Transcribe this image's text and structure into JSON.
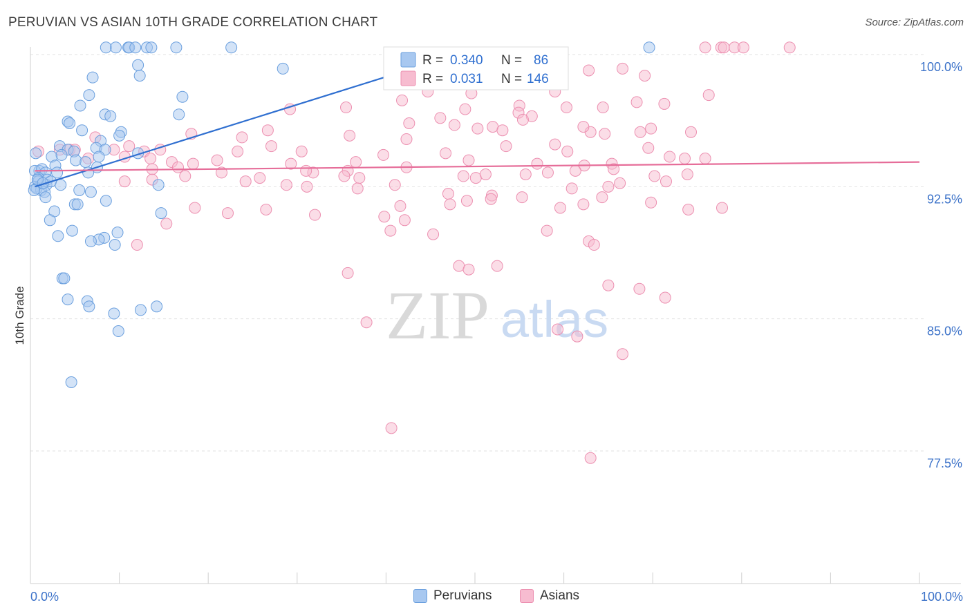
{
  "title": "PERUVIAN VS ASIAN 10TH GRADE CORRELATION CHART",
  "source": "Source: ZipAtlas.com",
  "watermark": {
    "zip": "ZIP",
    "atlas": "atlas"
  },
  "colors": {
    "blue_fill": "#a8c8f0",
    "blue_stroke": "#6a9fde",
    "blue_line": "#2f6fd0",
    "pink_fill": "#f7bcd0",
    "pink_stroke": "#ec8fb0",
    "pink_line": "#e66d99",
    "axis_text": "#3d73c9",
    "grid": "#e2e2e2"
  },
  "chart_data": {
    "type": "scatter",
    "xlabel": "",
    "ylabel": "10th Grade",
    "xlim": [
      0,
      100
    ],
    "ylim": [
      72.0,
      101.0
    ],
    "x_tick_labels": [
      "0.0%",
      "100.0%"
    ],
    "y_ticks": [
      100.0,
      92.5,
      85.0,
      77.5
    ],
    "y_tick_labels": [
      "100.0%",
      "92.5%",
      "85.0%",
      "77.5%"
    ],
    "grid": true,
    "legend_position": "top-center",
    "legend": [
      {
        "name": "Peruvians",
        "r_label": "R =",
        "r_value": "0.340",
        "n_label": "N =",
        "n_value": "86"
      },
      {
        "name": "Asians",
        "r_label": "R =",
        "r_value": "0.031",
        "n_label": "N =",
        "n_value": "146"
      }
    ],
    "series": [
      {
        "name": "Peruvians",
        "color": "#a8c8f0",
        "trend": {
          "x": [
            0.5,
            48
          ],
          "y": [
            92.5,
            100.0
          ]
        },
        "points": [
          [
            8.5,
            100.4
          ],
          [
            9.6,
            100.4
          ],
          [
            11.0,
            100.4
          ],
          [
            11.1,
            100.4
          ],
          [
            11.8,
            100.4
          ],
          [
            13.1,
            100.4
          ],
          [
            13.6,
            100.4
          ],
          [
            16.4,
            100.4
          ],
          [
            22.6,
            100.4
          ],
          [
            69.6,
            100.4
          ],
          [
            12.1,
            99.4
          ],
          [
            28.4,
            99.2
          ],
          [
            12.3,
            98.8
          ],
          [
            7.0,
            98.7
          ],
          [
            6.6,
            97.7
          ],
          [
            17.1,
            97.6
          ],
          [
            5.6,
            97.1
          ],
          [
            8.4,
            96.6
          ],
          [
            16.7,
            96.6
          ],
          [
            9.0,
            96.5
          ],
          [
            4.2,
            96.2
          ],
          [
            4.4,
            96.1
          ],
          [
            5.8,
            95.7
          ],
          [
            10.2,
            95.6
          ],
          [
            10.0,
            95.4
          ],
          [
            7.9,
            95.1
          ],
          [
            3.3,
            94.8
          ],
          [
            4.2,
            94.6
          ],
          [
            4.9,
            94.5
          ],
          [
            7.4,
            94.7
          ],
          [
            8.4,
            94.6
          ],
          [
            0.6,
            94.4
          ],
          [
            2.4,
            94.2
          ],
          [
            3.5,
            94.3
          ],
          [
            5.1,
            94.0
          ],
          [
            7.7,
            94.2
          ],
          [
            12.1,
            94.4
          ],
          [
            2.8,
            93.7
          ],
          [
            6.2,
            93.9
          ],
          [
            7.5,
            93.6
          ],
          [
            1.0,
            93.4
          ],
          [
            0.5,
            93.4
          ],
          [
            1.3,
            93.5
          ],
          [
            1.7,
            93.3
          ],
          [
            3.0,
            93.3
          ],
          [
            0.9,
            93.0
          ],
          [
            1.9,
            92.9
          ],
          [
            6.5,
            93.3
          ],
          [
            0.9,
            92.8
          ],
          [
            3.4,
            92.6
          ],
          [
            14.4,
            92.6
          ],
          [
            0.5,
            92.5
          ],
          [
            1.2,
            92.3
          ],
          [
            1.8,
            92.6
          ],
          [
            0.7,
            92.4
          ],
          [
            1.6,
            92.2
          ],
          [
            5.5,
            92.3
          ],
          [
            6.8,
            92.2
          ],
          [
            1.7,
            91.9
          ],
          [
            8.5,
            91.7
          ],
          [
            5.0,
            91.5
          ],
          [
            5.3,
            91.5
          ],
          [
            2.7,
            91.1
          ],
          [
            14.7,
            91.0
          ],
          [
            2.2,
            90.6
          ],
          [
            4.7,
            90.0
          ],
          [
            9.8,
            89.9
          ],
          [
            3.1,
            89.7
          ],
          [
            8.3,
            89.6
          ],
          [
            7.7,
            89.5
          ],
          [
            6.8,
            89.4
          ],
          [
            9.5,
            89.2
          ],
          [
            3.6,
            87.3
          ],
          [
            3.8,
            87.3
          ],
          [
            4.2,
            86.1
          ],
          [
            6.4,
            86.0
          ],
          [
            6.6,
            85.7
          ],
          [
            14.2,
            85.7
          ],
          [
            12.4,
            85.5
          ],
          [
            9.4,
            85.3
          ],
          [
            9.9,
            84.3
          ],
          [
            4.6,
            81.4
          ],
          [
            0.8,
            92.9
          ],
          [
            2.3,
            92.8
          ],
          [
            1.4,
            92.7
          ],
          [
            0.4,
            92.3
          ]
        ]
      },
      {
        "name": "Asians",
        "color": "#f7bcd0",
        "trend": {
          "x": [
            0.5,
            100
          ],
          "y": [
            93.4,
            93.9
          ]
        },
        "points": [
          [
            75.9,
            100.4
          ],
          [
            77.7,
            100.4
          ],
          [
            78.0,
            100.4
          ],
          [
            79.2,
            100.4
          ],
          [
            80.2,
            100.4
          ],
          [
            85.4,
            100.4
          ],
          [
            55.9,
            99.6
          ],
          [
            62.8,
            99.1
          ],
          [
            66.6,
            99.2
          ],
          [
            69.1,
            98.8
          ],
          [
            59.0,
            97.9
          ],
          [
            44.7,
            97.9
          ],
          [
            49.6,
            97.8
          ],
          [
            76.3,
            97.7
          ],
          [
            41.8,
            97.4
          ],
          [
            55.0,
            97.1
          ],
          [
            68.2,
            97.3
          ],
          [
            71.3,
            97.2
          ],
          [
            35.5,
            97.0
          ],
          [
            60.3,
            97.0
          ],
          [
            64.4,
            97.0
          ],
          [
            54.9,
            96.7
          ],
          [
            56.4,
            96.5
          ],
          [
            46.1,
            96.4
          ],
          [
            47.7,
            96.0
          ],
          [
            48.9,
            96.9
          ],
          [
            52.0,
            95.9
          ],
          [
            42.6,
            96.1
          ],
          [
            29.2,
            96.9
          ],
          [
            55.4,
            96.3
          ],
          [
            50.3,
            95.8
          ],
          [
            64.6,
            95.5
          ],
          [
            63.0,
            95.6
          ],
          [
            53.1,
            95.7
          ],
          [
            42.3,
            95.2
          ],
          [
            35.9,
            95.4
          ],
          [
            68.6,
            95.6
          ],
          [
            62.2,
            95.9
          ],
          [
            69.8,
            95.8
          ],
          [
            74.3,
            95.6
          ],
          [
            53.5,
            94.8
          ],
          [
            59.0,
            94.9
          ],
          [
            69.5,
            94.7
          ],
          [
            23.8,
            95.3
          ],
          [
            26.7,
            95.7
          ],
          [
            18.1,
            95.5
          ],
          [
            7.3,
            95.3
          ],
          [
            11.1,
            94.8
          ],
          [
            14.6,
            94.6
          ],
          [
            12.8,
            94.5
          ],
          [
            9.4,
            94.6
          ],
          [
            4.4,
            94.6
          ],
          [
            5.0,
            94.6
          ],
          [
            3.3,
            94.6
          ],
          [
            0.9,
            94.5
          ],
          [
            6.5,
            94.1
          ],
          [
            10.6,
            94.2
          ],
          [
            13.5,
            94.1
          ],
          [
            23.3,
            94.5
          ],
          [
            27.1,
            94.8
          ],
          [
            30.5,
            94.5
          ],
          [
            39.7,
            94.3
          ],
          [
            46.7,
            94.4
          ],
          [
            60.4,
            94.5
          ],
          [
            71.9,
            94.2
          ],
          [
            75.9,
            94.1
          ],
          [
            62.3,
            93.7
          ],
          [
            65.4,
            93.8
          ],
          [
            73.6,
            94.1
          ],
          [
            57.0,
            93.8
          ],
          [
            65.6,
            93.5
          ],
          [
            21.0,
            94.0
          ],
          [
            29.3,
            93.8
          ],
          [
            36.6,
            93.9
          ],
          [
            49.3,
            94.0
          ],
          [
            42.3,
            93.6
          ],
          [
            35.7,
            93.4
          ],
          [
            31.8,
            93.3
          ],
          [
            31.0,
            93.4
          ],
          [
            21.5,
            93.3
          ],
          [
            15.9,
            93.9
          ],
          [
            18.3,
            93.8
          ],
          [
            16.6,
            93.6
          ],
          [
            13.7,
            93.5
          ],
          [
            25.8,
            93.0
          ],
          [
            35.3,
            93.1
          ],
          [
            37.0,
            93.0
          ],
          [
            50.1,
            93.0
          ],
          [
            51.2,
            93.2
          ],
          [
            48.7,
            93.1
          ],
          [
            55.7,
            93.2
          ],
          [
            58.2,
            93.3
          ],
          [
            61.3,
            93.4
          ],
          [
            70.2,
            93.1
          ],
          [
            73.9,
            93.2
          ],
          [
            66.3,
            92.7
          ],
          [
            71.5,
            92.8
          ],
          [
            65.0,
            92.5
          ],
          [
            60.9,
            92.4
          ],
          [
            51.9,
            92.0
          ],
          [
            36.8,
            92.4
          ],
          [
            41.0,
            92.6
          ],
          [
            31.1,
            92.5
          ],
          [
            28.8,
            92.6
          ],
          [
            17.4,
            93.1
          ],
          [
            24.2,
            92.8
          ],
          [
            13.7,
            92.9
          ],
          [
            10.6,
            92.8
          ],
          [
            47.0,
            92.1
          ],
          [
            49.1,
            91.7
          ],
          [
            51.8,
            91.8
          ],
          [
            55.3,
            91.9
          ],
          [
            59.6,
            91.3
          ],
          [
            62.2,
            91.5
          ],
          [
            64.3,
            91.9
          ],
          [
            69.8,
            91.6
          ],
          [
            74.0,
            91.2
          ],
          [
            77.8,
            91.3
          ],
          [
            41.6,
            91.4
          ],
          [
            47.2,
            91.5
          ],
          [
            26.5,
            91.2
          ],
          [
            32.0,
            90.9
          ],
          [
            22.2,
            91.0
          ],
          [
            18.5,
            91.3
          ],
          [
            15.3,
            90.4
          ],
          [
            39.8,
            90.8
          ],
          [
            42.1,
            90.6
          ],
          [
            40.5,
            90.0
          ],
          [
            58.1,
            90.0
          ],
          [
            62.8,
            89.4
          ],
          [
            63.4,
            89.2
          ],
          [
            48.2,
            88.0
          ],
          [
            52.5,
            88.0
          ],
          [
            12.0,
            89.2
          ],
          [
            45.3,
            89.8
          ],
          [
            35.7,
            87.6
          ],
          [
            49.3,
            87.8
          ],
          [
            68.5,
            86.7
          ],
          [
            65.0,
            86.9
          ],
          [
            37.8,
            84.8
          ],
          [
            59.3,
            84.4
          ],
          [
            61.5,
            84.0
          ],
          [
            71.4,
            86.2
          ],
          [
            66.6,
            83.0
          ],
          [
            40.6,
            78.8
          ],
          [
            63.0,
            77.1
          ]
        ]
      }
    ]
  },
  "bottom_legend": [
    "Peruvians",
    "Asians"
  ]
}
